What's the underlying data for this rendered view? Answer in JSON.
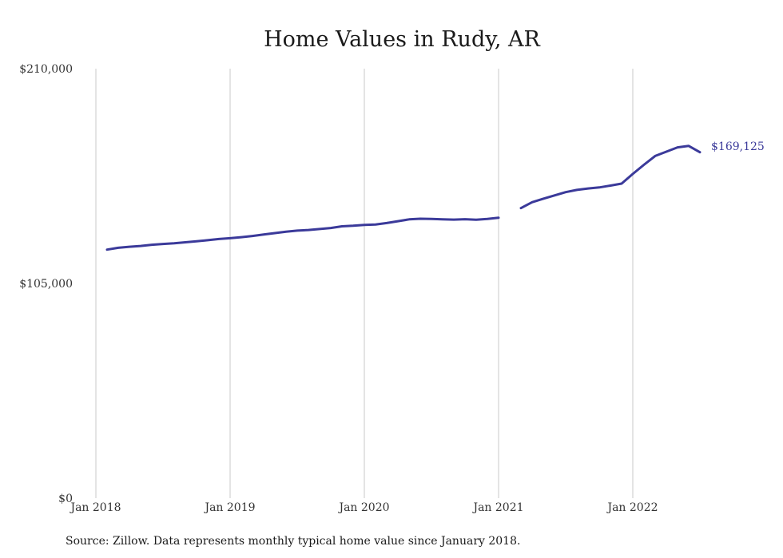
{
  "chart_data": {
    "type": "line",
    "title": "Home Values in Rudy, AR",
    "source": "Source: Zillow. Data represents monthly typical home value since January 2018.",
    "ylim": [
      0,
      210000
    ],
    "y_ticks": [
      {
        "value": 0,
        "label": "$0"
      },
      {
        "value": 105000,
        "label": "$105,000"
      },
      {
        "value": 210000,
        "label": "$210,000"
      }
    ],
    "x_ticks": [
      {
        "value": "2018-01",
        "label": "Jan 2018"
      },
      {
        "value": "2019-01",
        "label": "Jan 2019"
      },
      {
        "value": "2020-01",
        "label": "Jan 2020"
      },
      {
        "value": "2021-01",
        "label": "Jan 2021"
      },
      {
        "value": "2022-01",
        "label": "Jan 2022"
      }
    ],
    "xlim": [
      "2018-01",
      "2022-07"
    ],
    "grid": "vertical",
    "line_color": "#3b3a9a",
    "end_label": "$169,125",
    "series": [
      {
        "segments": [
          [
            {
              "x": "2018-02",
              "y": 121500
            },
            {
              "x": "2018-03",
              "y": 122400
            },
            {
              "x": "2018-04",
              "y": 122900
            },
            {
              "x": "2018-05",
              "y": 123300
            },
            {
              "x": "2018-06",
              "y": 123900
            },
            {
              "x": "2018-07",
              "y": 124300
            },
            {
              "x": "2018-08",
              "y": 124600
            },
            {
              "x": "2018-09",
              "y": 125100
            },
            {
              "x": "2018-10",
              "y": 125600
            },
            {
              "x": "2018-11",
              "y": 126100
            },
            {
              "x": "2018-12",
              "y": 126700
            },
            {
              "x": "2019-01",
              "y": 127100
            },
            {
              "x": "2019-02",
              "y": 127600
            },
            {
              "x": "2019-03",
              "y": 128200
            },
            {
              "x": "2019-04",
              "y": 128900
            },
            {
              "x": "2019-05",
              "y": 129600
            },
            {
              "x": "2019-06",
              "y": 130300
            },
            {
              "x": "2019-07",
              "y": 130800
            },
            {
              "x": "2019-08",
              "y": 131100
            },
            {
              "x": "2019-09",
              "y": 131600
            },
            {
              "x": "2019-10",
              "y": 132100
            },
            {
              "x": "2019-11",
              "y": 132900
            },
            {
              "x": "2019-12",
              "y": 133200
            },
            {
              "x": "2020-01",
              "y": 133600
            },
            {
              "x": "2020-02",
              "y": 133800
            },
            {
              "x": "2020-03",
              "y": 134500
            },
            {
              "x": "2020-04",
              "y": 135400
            },
            {
              "x": "2020-05",
              "y": 136300
            },
            {
              "x": "2020-06",
              "y": 136600
            },
            {
              "x": "2020-07",
              "y": 136500
            },
            {
              "x": "2020-08",
              "y": 136300
            },
            {
              "x": "2020-09",
              "y": 136200
            },
            {
              "x": "2020-10",
              "y": 136400
            },
            {
              "x": "2020-11",
              "y": 136100
            },
            {
              "x": "2020-12",
              "y": 136500
            },
            {
              "x": "2021-01",
              "y": 137100
            }
          ],
          [
            {
              "x": "2021-03",
              "y": 141800
            },
            {
              "x": "2021-04",
              "y": 144700
            },
            {
              "x": "2021-05",
              "y": 146400
            },
            {
              "x": "2021-06",
              "y": 148000
            },
            {
              "x": "2021-07",
              "y": 149600
            },
            {
              "x": "2021-08",
              "y": 150700
            },
            {
              "x": "2021-09",
              "y": 151400
            },
            {
              "x": "2021-10",
              "y": 151900
            },
            {
              "x": "2021-11",
              "y": 152800
            },
            {
              "x": "2021-12",
              "y": 153800
            },
            {
              "x": "2022-01",
              "y": 158500
            },
            {
              "x": "2022-02",
              "y": 163000
            },
            {
              "x": "2022-03",
              "y": 167300
            },
            {
              "x": "2022-04",
              "y": 169400
            },
            {
              "x": "2022-05",
              "y": 171500
            },
            {
              "x": "2022-06",
              "y": 172200
            },
            {
              "x": "2022-07",
              "y": 169125
            }
          ]
        ]
      }
    ]
  }
}
